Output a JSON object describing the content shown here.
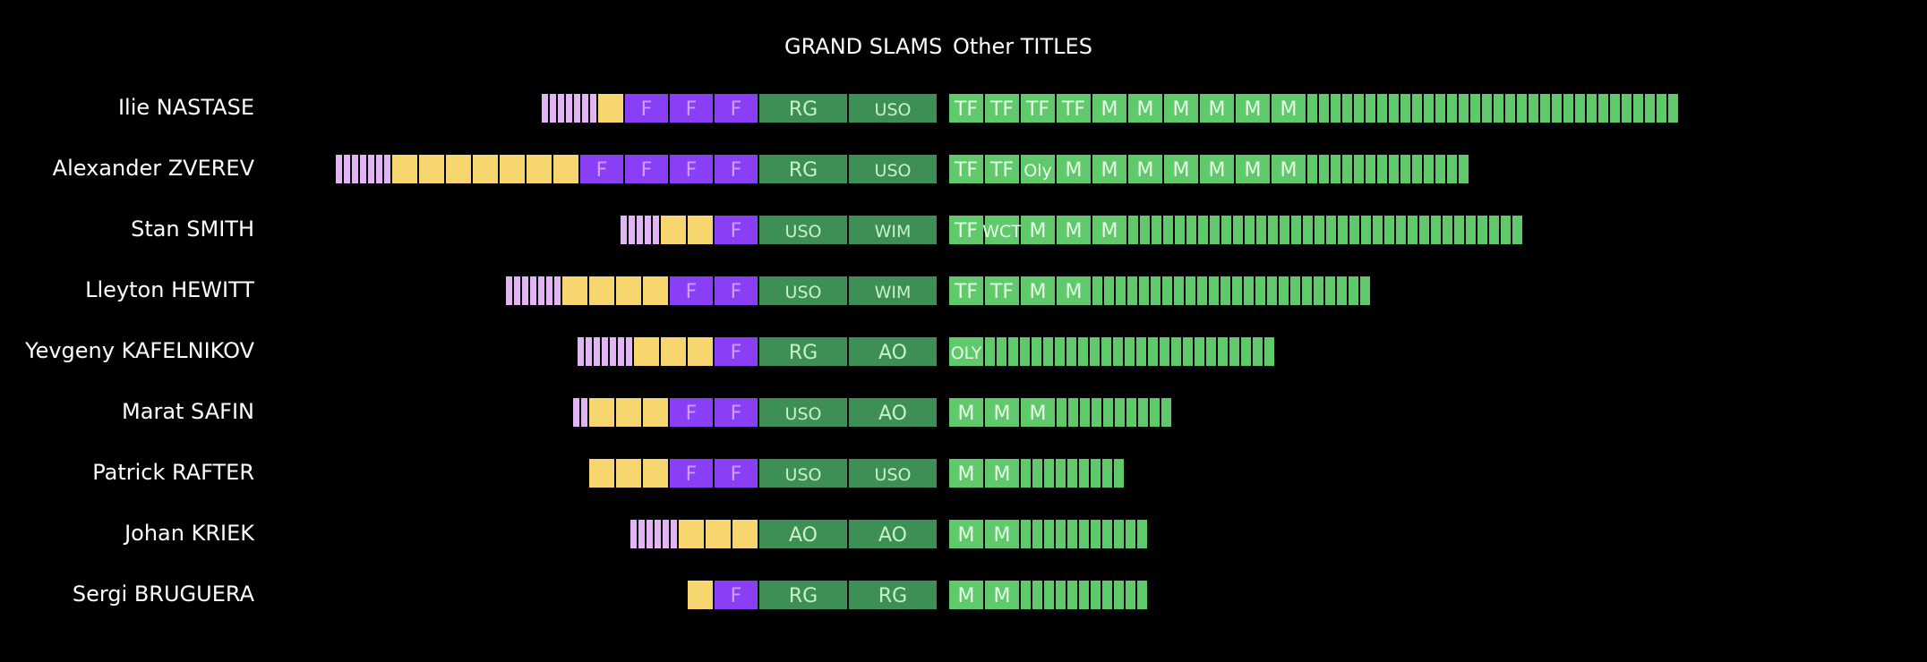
{
  "chart_data": {
    "type": "bar",
    "headers": {
      "slams": "GRAND SLAMS",
      "other": "Other TITLES"
    },
    "colors": {
      "semi": "#e2b4f5",
      "quarter": "#f7d670",
      "final": "#8a3ef5",
      "slam_win": "#3e8f55",
      "other_labeled": "#5fc96c",
      "other_plain": "#5fc96c",
      "label_final": "#c9a0ff",
      "label_slam": "#c8f2c8",
      "label_other": "#e6ffe6"
    },
    "legend_note": "",
    "players": [
      {
        "name": "Ilie NASTASE",
        "semis": 7,
        "quarters": 1,
        "finals": [
          "F",
          "F",
          "F"
        ],
        "slam_wins": [
          "RG",
          "USO"
        ],
        "other_labeled": [
          "TF",
          "TF",
          "TF",
          "TF",
          "M",
          "M",
          "M",
          "M",
          "M",
          "M"
        ],
        "other_count": 32
      },
      {
        "name": "Alexander ZVEREV",
        "semis": 7,
        "quarters": 7,
        "finals": [
          "F",
          "F",
          "F",
          "F"
        ],
        "slam_wins": [
          "RG",
          "USO"
        ],
        "other_labeled": [
          "TF",
          "TF",
          "Oly",
          "M",
          "M",
          "M",
          "M",
          "M",
          "M",
          "M"
        ],
        "other_count": 14
      },
      {
        "name": "Stan SMITH",
        "semis": 5,
        "quarters": 2,
        "finals": [
          "F"
        ],
        "slam_wins": [
          "USO",
          "WIM"
        ],
        "other_labeled": [
          "TF",
          "WCT",
          "M",
          "M",
          "M"
        ],
        "other_count": 34
      },
      {
        "name": "Lleyton HEWITT",
        "semis": 7,
        "quarters": 4,
        "finals": [
          "F",
          "F"
        ],
        "slam_wins": [
          "USO",
          "WIM"
        ],
        "other_labeled": [
          "TF",
          "TF",
          "M",
          "M"
        ],
        "other_count": 24
      },
      {
        "name": "Yevgeny KAFELNIKOV",
        "semis": 7,
        "quarters": 3,
        "finals": [
          "F"
        ],
        "slam_wins": [
          "RG",
          "AO"
        ],
        "other_labeled": [
          "OLY"
        ],
        "other_count": 25
      },
      {
        "name": "Marat SAFIN",
        "semis": 2,
        "quarters": 3,
        "finals": [
          "F",
          "F"
        ],
        "slam_wins": [
          "USO",
          "AO"
        ],
        "other_labeled": [
          "M",
          "M",
          "M"
        ],
        "other_count": 10
      },
      {
        "name": "Patrick RAFTER",
        "semis": 0,
        "quarters": 3,
        "finals": [
          "F",
          "F"
        ],
        "slam_wins": [
          "USO",
          "USO"
        ],
        "other_labeled": [
          "M",
          "M"
        ],
        "other_count": 9
      },
      {
        "name": "Johan KRIEK",
        "semis": 6,
        "quarters": 3,
        "finals": [],
        "slam_wins": [
          "AO",
          "AO"
        ],
        "other_labeled": [
          "M",
          "M"
        ],
        "other_count": 11
      },
      {
        "name": "Sergi BRUGUERA",
        "semis": 0,
        "quarters": 1,
        "finals": [
          "F"
        ],
        "slam_wins": [
          "RG",
          "RG"
        ],
        "other_labeled": [
          "M",
          "M"
        ],
        "other_count": 11
      }
    ]
  }
}
